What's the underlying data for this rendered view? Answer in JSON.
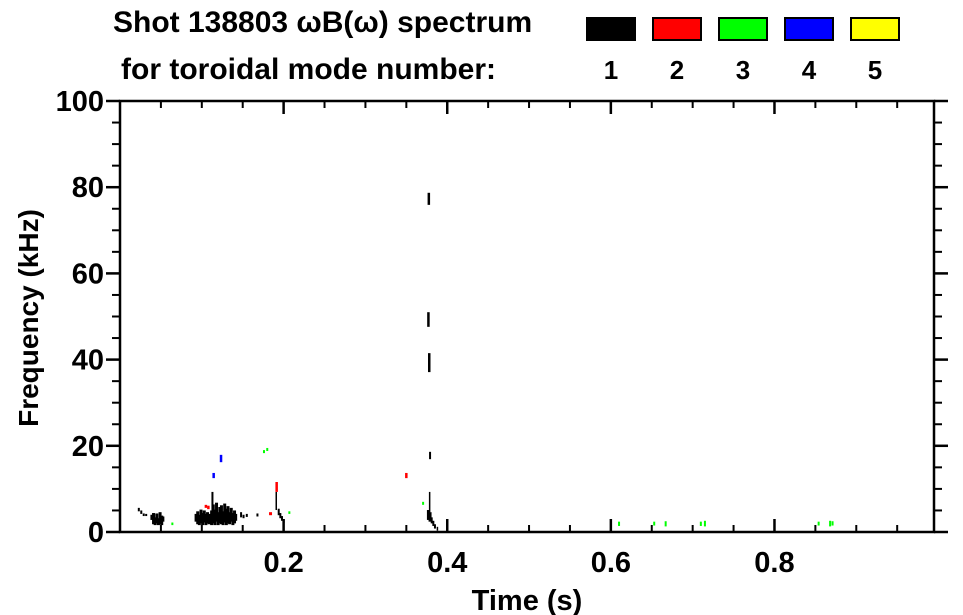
{
  "header": {
    "title_line1": "Shot 138803 ωB(ω) spectrum",
    "title_line2": "for toroidal mode number:",
    "legend": [
      {
        "mode": "1",
        "color": "#000000"
      },
      {
        "mode": "2",
        "color": "#ff0000"
      },
      {
        "mode": "3",
        "color": "#00ff00"
      },
      {
        "mode": "4",
        "color": "#0000ff"
      },
      {
        "mode": "5",
        "color": "#ffff00"
      }
    ]
  },
  "chart_data": {
    "type": "scatter",
    "title": "Shot 138803 ωB(ω) spectrum for toroidal mode number: 1 2 3 4 5",
    "xlabel": "Time (s)",
    "ylabel": "Frequency (kHz)",
    "xlim": [
      0,
      0.995
    ],
    "ylim": [
      0,
      100
    ],
    "grid": false,
    "frame_color": "#000000",
    "background": "#ffffff",
    "legend_position": "top-right",
    "x_major_ticks": [
      0.2,
      0.4,
      0.6,
      0.8
    ],
    "x_major_labels": [
      "0.2",
      "0.4",
      "0.6",
      "0.8"
    ],
    "x_minor_step": 0.05,
    "y_major_ticks": [
      0,
      20,
      40,
      60,
      80,
      100
    ],
    "y_major_labels": [
      "0",
      "20",
      "40",
      "60",
      "80",
      "100"
    ],
    "y_minor_step": 5,
    "series": [
      {
        "name": "toroidal mode n=1",
        "color": "#000000",
        "marks": [
          [
            0.023,
            4.8,
            5.6,
            2
          ],
          [
            0.026,
            4.2,
            5.0,
            2
          ],
          [
            0.029,
            3.7,
            4.3,
            2
          ],
          [
            0.032,
            3.7,
            4.2,
            2
          ],
          [
            0.039,
            2.8,
            4.0,
            3
          ],
          [
            0.041,
            1.8,
            4.4,
            3
          ],
          [
            0.043,
            1.6,
            3.4,
            3
          ],
          [
            0.045,
            2.0,
            4.3,
            3
          ],
          [
            0.047,
            1.6,
            3.2,
            3
          ],
          [
            0.049,
            1.8,
            4.6,
            3
          ],
          [
            0.051,
            1.6,
            3.8,
            3
          ],
          [
            0.053,
            2.4,
            3.6,
            2
          ],
          [
            0.093,
            2.4,
            4.2,
            3
          ],
          [
            0.095,
            1.8,
            4.8,
            3
          ],
          [
            0.097,
            1.6,
            4.0,
            3
          ],
          [
            0.099,
            2.0,
            5.2,
            3
          ],
          [
            0.101,
            1.6,
            4.4,
            3
          ],
          [
            0.103,
            2.2,
            5.0,
            3
          ],
          [
            0.105,
            1.6,
            4.2,
            3
          ],
          [
            0.107,
            2.0,
            4.6,
            3
          ],
          [
            0.109,
            1.8,
            4.2,
            3
          ],
          [
            0.113,
            4.6,
            9.3,
            2
          ],
          [
            0.112,
            1.6,
            5.0,
            3
          ],
          [
            0.114,
            2.0,
            6.4,
            3
          ],
          [
            0.116,
            1.6,
            5.2,
            3
          ],
          [
            0.118,
            2.4,
            6.8,
            3
          ],
          [
            0.12,
            1.6,
            4.6,
            3
          ],
          [
            0.122,
            2.0,
            5.8,
            3
          ],
          [
            0.124,
            1.8,
            6.2,
            3
          ],
          [
            0.126,
            1.6,
            4.8,
            3
          ],
          [
            0.128,
            2.2,
            6.6,
            3
          ],
          [
            0.13,
            1.6,
            5.4,
            3
          ],
          [
            0.132,
            2.0,
            6.0,
            3
          ],
          [
            0.134,
            1.8,
            4.6,
            3
          ],
          [
            0.136,
            2.4,
            5.6,
            3
          ],
          [
            0.138,
            1.6,
            4.4,
            3
          ],
          [
            0.14,
            2.0,
            5.0,
            3
          ],
          [
            0.142,
            2.6,
            4.2,
            2
          ],
          [
            0.148,
            3.4,
            4.6,
            2
          ],
          [
            0.151,
            3.2,
            4.0,
            2
          ],
          [
            0.155,
            3.5,
            4.2,
            2
          ],
          [
            0.168,
            3.6,
            4.3,
            2
          ],
          [
            0.191,
            5.1,
            9.3,
            1.5
          ],
          [
            0.194,
            3.9,
            5.4,
            2
          ],
          [
            0.196,
            3.2,
            4.4,
            2
          ],
          [
            0.198,
            2.6,
            3.7,
            2
          ],
          [
            0.2,
            2.1,
            3.0,
            2
          ],
          [
            0.3775,
            75.9,
            78.7,
            2.5
          ],
          [
            0.377,
            47.6,
            51.0,
            2.5
          ],
          [
            0.378,
            37.1,
            41.5,
            2.5
          ],
          [
            0.379,
            16.9,
            18.6,
            2
          ],
          [
            0.3785,
            4.6,
            9.3,
            1.5
          ],
          [
            0.377,
            2.8,
            5.1,
            3
          ],
          [
            0.379,
            2.4,
            4.6,
            3
          ],
          [
            0.381,
            2.0,
            3.4,
            2
          ],
          [
            0.383,
            1.4,
            2.6,
            2
          ],
          [
            0.385,
            0.8,
            1.8,
            2
          ],
          [
            0.388,
            0.3,
            1.2,
            1.5
          ]
        ]
      },
      {
        "name": "toroidal mode n=2",
        "color": "#ff0000",
        "marks": [
          [
            0.105,
            5.6,
            6.3,
            2.5
          ],
          [
            0.108,
            5.3,
            6.1,
            2.5
          ],
          [
            0.184,
            3.9,
            4.6,
            3
          ],
          [
            0.1915,
            9.3,
            11.6,
            2.5
          ],
          [
            0.35,
            12.5,
            13.7,
            2.5
          ]
        ]
      },
      {
        "name": "toroidal mode n=3",
        "color": "#00ff00",
        "marks": [
          [
            0.064,
            1.6,
            2.2,
            2
          ],
          [
            0.176,
            18.3,
            19.0,
            2
          ],
          [
            0.18,
            18.8,
            19.5,
            2
          ],
          [
            0.207,
            4.2,
            4.8,
            2
          ],
          [
            0.3705,
            6.3,
            7.0,
            2
          ],
          [
            0.61,
            1.4,
            2.4,
            2
          ],
          [
            0.653,
            1.5,
            2.4,
            2
          ],
          [
            0.667,
            1.3,
            2.5,
            2
          ],
          [
            0.71,
            1.4,
            2.4,
            2
          ],
          [
            0.715,
            1.3,
            2.6,
            2
          ],
          [
            0.854,
            1.5,
            2.4,
            2
          ],
          [
            0.868,
            1.3,
            2.6,
            2
          ],
          [
            0.871,
            1.5,
            2.5,
            2
          ]
        ]
      },
      {
        "name": "toroidal mode n=4",
        "color": "#0000ff",
        "marks": [
          [
            0.1145,
            12.5,
            13.7,
            2.5
          ],
          [
            0.1235,
            16.2,
            17.9,
            2.5
          ]
        ]
      },
      {
        "name": "toroidal mode n=5",
        "color": "#ffff00",
        "marks": []
      }
    ]
  }
}
